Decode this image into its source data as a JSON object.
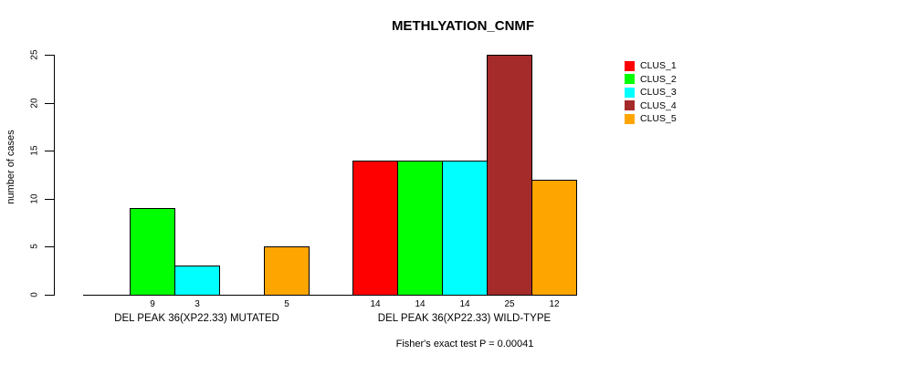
{
  "figure": {
    "title": "METHLYATION_CNMF",
    "y_axis_label": "number of cases",
    "caption": "Fisher's exact test P = 0.00041"
  },
  "chart_data": {
    "type": "bar",
    "title": "METHLYATION_CNMF",
    "xlabel": "",
    "ylabel": "number of cases",
    "ylim": [
      0,
      25
    ],
    "yticks": [
      0,
      5,
      10,
      15,
      20,
      25
    ],
    "grid": false,
    "legend_position": "right",
    "categories": [
      "DEL PEAK 36(XP22.33) MUTATED",
      "DEL PEAK 36(XP22.33) WILD-TYPE"
    ],
    "series": [
      {
        "name": "CLUS_1",
        "color": "#ff0000",
        "values": [
          0,
          14
        ]
      },
      {
        "name": "CLUS_2",
        "color": "#00ff00",
        "values": [
          9,
          14
        ]
      },
      {
        "name": "CLUS_3",
        "color": "#00ffff",
        "values": [
          3,
          14
        ]
      },
      {
        "name": "CLUS_4",
        "color": "#a52a2a",
        "values": [
          0,
          25
        ]
      },
      {
        "name": "CLUS_5",
        "color": "#ffa500",
        "values": [
          5,
          12
        ]
      }
    ],
    "bar_value_labels": [
      [
        "",
        "9",
        "3",
        "",
        "5"
      ],
      [
        "14",
        "14",
        "14",
        "25",
        "12"
      ]
    ],
    "zero_bars_hidden": true,
    "bar_border_color": "#000000",
    "caption": "Fisher's exact test P = 0.00041"
  },
  "legend": {
    "items": [
      {
        "label": "CLUS_1",
        "color": "#ff0000"
      },
      {
        "label": "CLUS_2",
        "color": "#00ff00"
      },
      {
        "label": "CLUS_3",
        "color": "#00ffff"
      },
      {
        "label": "CLUS_4",
        "color": "#a52a2a"
      },
      {
        "label": "CLUS_5",
        "color": "#ffa500"
      }
    ]
  }
}
